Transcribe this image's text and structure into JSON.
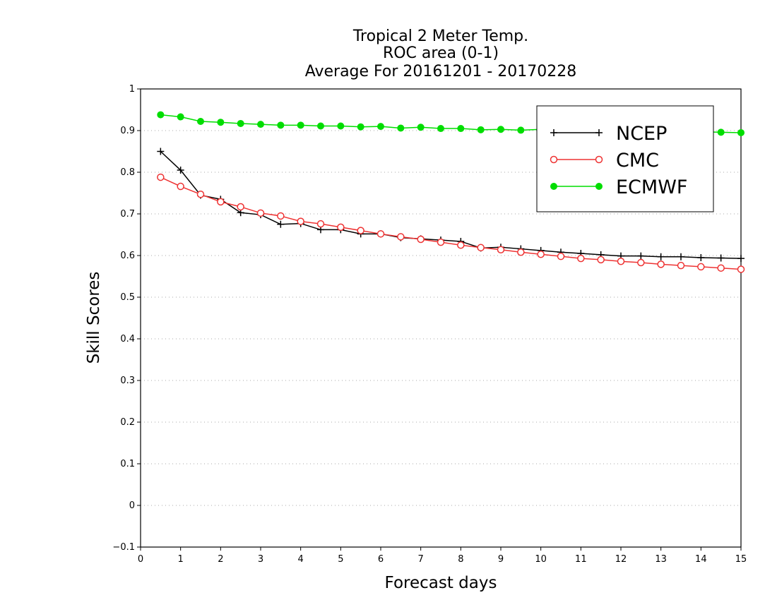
{
  "chart_data": {
    "type": "line",
    "title_lines": [
      "Tropical 2 Meter Temp.",
      "ROC area (0-1)",
      "Average For 20161201 - 20170228"
    ],
    "xlabel": "Forecast days",
    "ylabel": "Skill Scores",
    "xlim": [
      0,
      15
    ],
    "ylim": [
      -0.1,
      1
    ],
    "x_ticks": [
      0,
      1,
      2,
      3,
      4,
      5,
      6,
      7,
      8,
      9,
      10,
      11,
      12,
      13,
      14,
      15
    ],
    "y_ticks": [
      -0.1,
      0,
      0.1,
      0.2,
      0.3,
      0.4,
      0.5,
      0.6,
      0.7,
      0.8,
      0.9,
      1
    ],
    "grid": "horizontal dotted",
    "legend_position": "top-right",
    "x": [
      0.5,
      1,
      1.5,
      2,
      2.5,
      3,
      3.5,
      4,
      4.5,
      5,
      5.5,
      6,
      6.5,
      7,
      7.5,
      8,
      8.5,
      9,
      9.5,
      10,
      10.5,
      11,
      11.5,
      12,
      12.5,
      13,
      13.5,
      14,
      14.5,
      15
    ],
    "series": [
      {
        "name": "NCEP",
        "color": "#000000",
        "marker": "plus",
        "values": [
          0.85,
          0.805,
          0.745,
          0.735,
          0.703,
          0.698,
          0.675,
          0.677,
          0.662,
          0.662,
          0.652,
          0.652,
          0.643,
          0.64,
          0.637,
          0.634,
          0.618,
          0.62,
          0.616,
          0.612,
          0.608,
          0.605,
          0.602,
          0.599,
          0.599,
          0.597,
          0.597,
          0.595,
          0.594,
          0.593
        ]
      },
      {
        "name": "CMC",
        "color": "#ee3333",
        "marker": "open-circle",
        "values": [
          0.788,
          0.766,
          0.747,
          0.729,
          0.717,
          0.702,
          0.695,
          0.682,
          0.676,
          0.668,
          0.66,
          0.652,
          0.645,
          0.639,
          0.632,
          0.625,
          0.619,
          0.614,
          0.608,
          0.603,
          0.598,
          0.593,
          0.59,
          0.586,
          0.583,
          0.579,
          0.576,
          0.573,
          0.57,
          0.567
        ]
      },
      {
        "name": "ECMWF",
        "color": "#00dd00",
        "marker": "filled-circle",
        "values": [
          0.938,
          0.933,
          0.922,
          0.92,
          0.917,
          0.915,
          0.913,
          0.913,
          0.911,
          0.911,
          0.909,
          0.91,
          0.906,
          0.908,
          0.905,
          0.905,
          0.902,
          0.903,
          0.901,
          0.903,
          0.9,
          0.9,
          0.9,
          0.9,
          0.899,
          0.899,
          0.898,
          0.897,
          0.896,
          0.895
        ]
      }
    ]
  }
}
